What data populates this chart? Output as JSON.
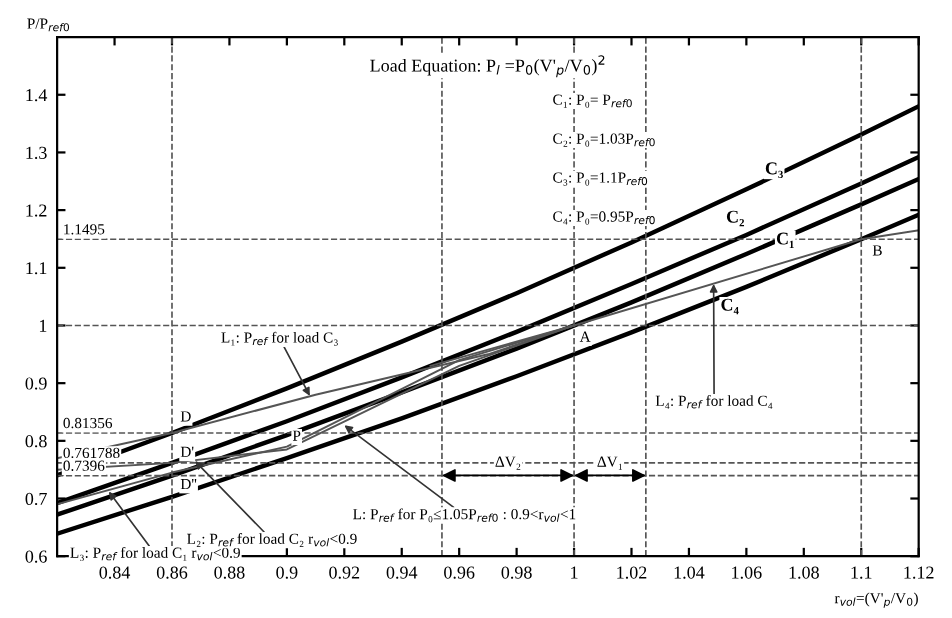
{
  "chart_data": {
    "type": "line",
    "ylabel": "P/P$_{ref0}$",
    "xlabel": "r$_{vol}$=(V'$_{p}$/V$_{0}$)",
    "xlim": [
      0.82,
      1.12
    ],
    "ylim": [
      0.6,
      1.5
    ],
    "xticks": [
      0.84,
      0.86,
      0.88,
      0.9,
      0.92,
      0.94,
      0.96,
      0.98,
      1,
      1.02,
      1.04,
      1.06,
      1.08,
      1.1,
      1.12
    ],
    "yticks": [
      0.6,
      0.7,
      0.8,
      0.9,
      1,
      1.1,
      1.2,
      1.3,
      1.4
    ],
    "grid": false,
    "legend": false,
    "marker": "none",
    "line_style": "solid",
    "series": [
      {
        "name": "C₃",
        "color": "#000000",
        "x": [
          0.82,
          0.86,
          0.9,
          0.94,
          0.98,
          1.02,
          1.06,
          1.1,
          1.12
        ],
        "values": [
          0.74,
          0.8136,
          0.891,
          0.972,
          1.056,
          1.144,
          1.236,
          1.331,
          1.38
        ]
      },
      {
        "name": "C₂",
        "color": "#000000",
        "x": [
          0.82,
          0.86,
          0.9,
          0.94,
          0.98,
          1.02,
          1.06,
          1.1,
          1.12
        ],
        "values": [
          0.692,
          0.7618,
          0.834,
          0.91,
          0.989,
          1.072,
          1.157,
          1.246,
          1.292
        ]
      },
      {
        "name": "C₁",
        "color": "#000000",
        "x": [
          0.82,
          0.86,
          0.9,
          0.94,
          0.98,
          1.02,
          1.06,
          1.1,
          1.12
        ],
        "values": [
          0.672,
          0.7396,
          0.81,
          0.884,
          0.96,
          1.04,
          1.124,
          1.21,
          1.254
        ]
      },
      {
        "name": "C₄",
        "color": "#000000",
        "x": [
          0.82,
          0.86,
          0.9,
          0.94,
          0.98,
          1.02,
          1.06,
          1.1,
          1.12
        ],
        "values": [
          0.639,
          0.703,
          0.77,
          0.839,
          0.912,
          0.988,
          1.067,
          1.1495,
          1.192
        ]
      },
      {
        "color": "#555555",
        "x": [
          0.82,
          0.86,
          0.91,
          0.97,
          1.0
        ],
        "values": [
          0.77,
          0.8136,
          0.88,
          0.95,
          1.0
        ]
      },
      {
        "color": "#555555",
        "x": [
          0.82,
          0.86,
          0.9,
          0.96,
          1.0
        ],
        "values": [
          0.75,
          0.7618,
          0.785,
          0.93,
          1.0
        ]
      },
      {
        "color": "#555555",
        "x": [
          0.82,
          0.86,
          0.9,
          0.96,
          1.0
        ],
        "values": [
          0.69,
          0.745,
          0.79,
          0.94,
          1.0
        ]
      },
      {
        "color": "#555555",
        "x": [
          0.95,
          1.0,
          1.1,
          1.12
        ],
        "values": [
          0.93,
          1.0,
          1.1495,
          1.165
        ]
      }
    ],
    "ref_lines": [
      {
        "axis": "y",
        "value": 1,
        "line_style": "dashed",
        "color": "#555555"
      },
      {
        "axis": "y",
        "value": 1.1495,
        "label": "1.1495",
        "line_style": "dashed",
        "color": "#555555"
      },
      {
        "axis": "y",
        "value": 0.81356,
        "label": "0.81356",
        "line_style": "dashed",
        "color": "#555555"
      },
      {
        "axis": "y",
        "value": 0.761788,
        "label": "0.761788",
        "line_style": "dashed",
        "color": "#555555"
      },
      {
        "axis": "y",
        "value": 0.7396,
        "label": "0.7396",
        "line_style": "dashed",
        "color": "#555555"
      },
      {
        "axis": "x",
        "value": 0.86,
        "line_style": "dashed",
        "color": "#555555"
      },
      {
        "axis": "x",
        "value": 0.954,
        "line_style": "dashed",
        "color": "#555555"
      },
      {
        "axis": "x",
        "value": 1,
        "line_style": "dashed",
        "color": "#555555"
      },
      {
        "axis": "x",
        "value": 1.025,
        "line_style": "dashed",
        "color": "#555555"
      },
      {
        "axis": "x",
        "value": 1.1,
        "line_style": "dashed",
        "color": "#555555"
      }
    ],
    "annotations": [
      "Load Equation: P$_{l}$ =P$_{0}$(V'$_{p}$/V$_{0}$)$^{2}$",
      "C₁: P₀= P$_{ref0}$",
      "C₂: P₀=1.03P$_{ref0}$",
      "C₃: P₀=1.1P$_{ref0}$",
      "C₄: P₀=0.95P$_{ref0}$",
      {
        "text": "A",
        "x": 1.0,
        "y": 1.0
      },
      {
        "text": "B",
        "x": 1.1,
        "y": 1.1495
      },
      {
        "text": "D",
        "x": 0.86,
        "y": 0.81356
      },
      {
        "text": "D'",
        "x": 0.86,
        "y": 0.761788
      },
      {
        "text": "D''",
        "x": 0.86,
        "y": 0.7396
      },
      {
        "text": "P",
        "x": 0.9,
        "y": 0.785
      },
      {
        "text": "L₁: P$_{ref}$ for load C₃",
        "x": 0.908,
        "y": 0.878
      },
      {
        "text": "L₃: P$_{ref}$ for load C₁ r$_{vol}$<0.9",
        "x": 0.838,
        "y": 0.712
      },
      {
        "text": "L₂: P$_{ref}$ for load C₂ r$_{vol}$<0.9",
        "x": 0.868,
        "y": 0.765
      },
      {
        "text": "L: P$_{ref}$ for P₀≤1.05P$_{ref0}$ : 0.9<r$_{vol}$<1",
        "x": 0.92,
        "y": 0.827
      },
      {
        "text": "L₄: P$_{ref}$ for load C₄",
        "x": 1.0486,
        "y": 1.072
      },
      {
        "text": "ΔV₂",
        "x": 0.977,
        "y": 0.74
      },
      {
        "text": "ΔV₁",
        "x": 1.0125,
        "y": 0.74
      }
    ]
  }
}
